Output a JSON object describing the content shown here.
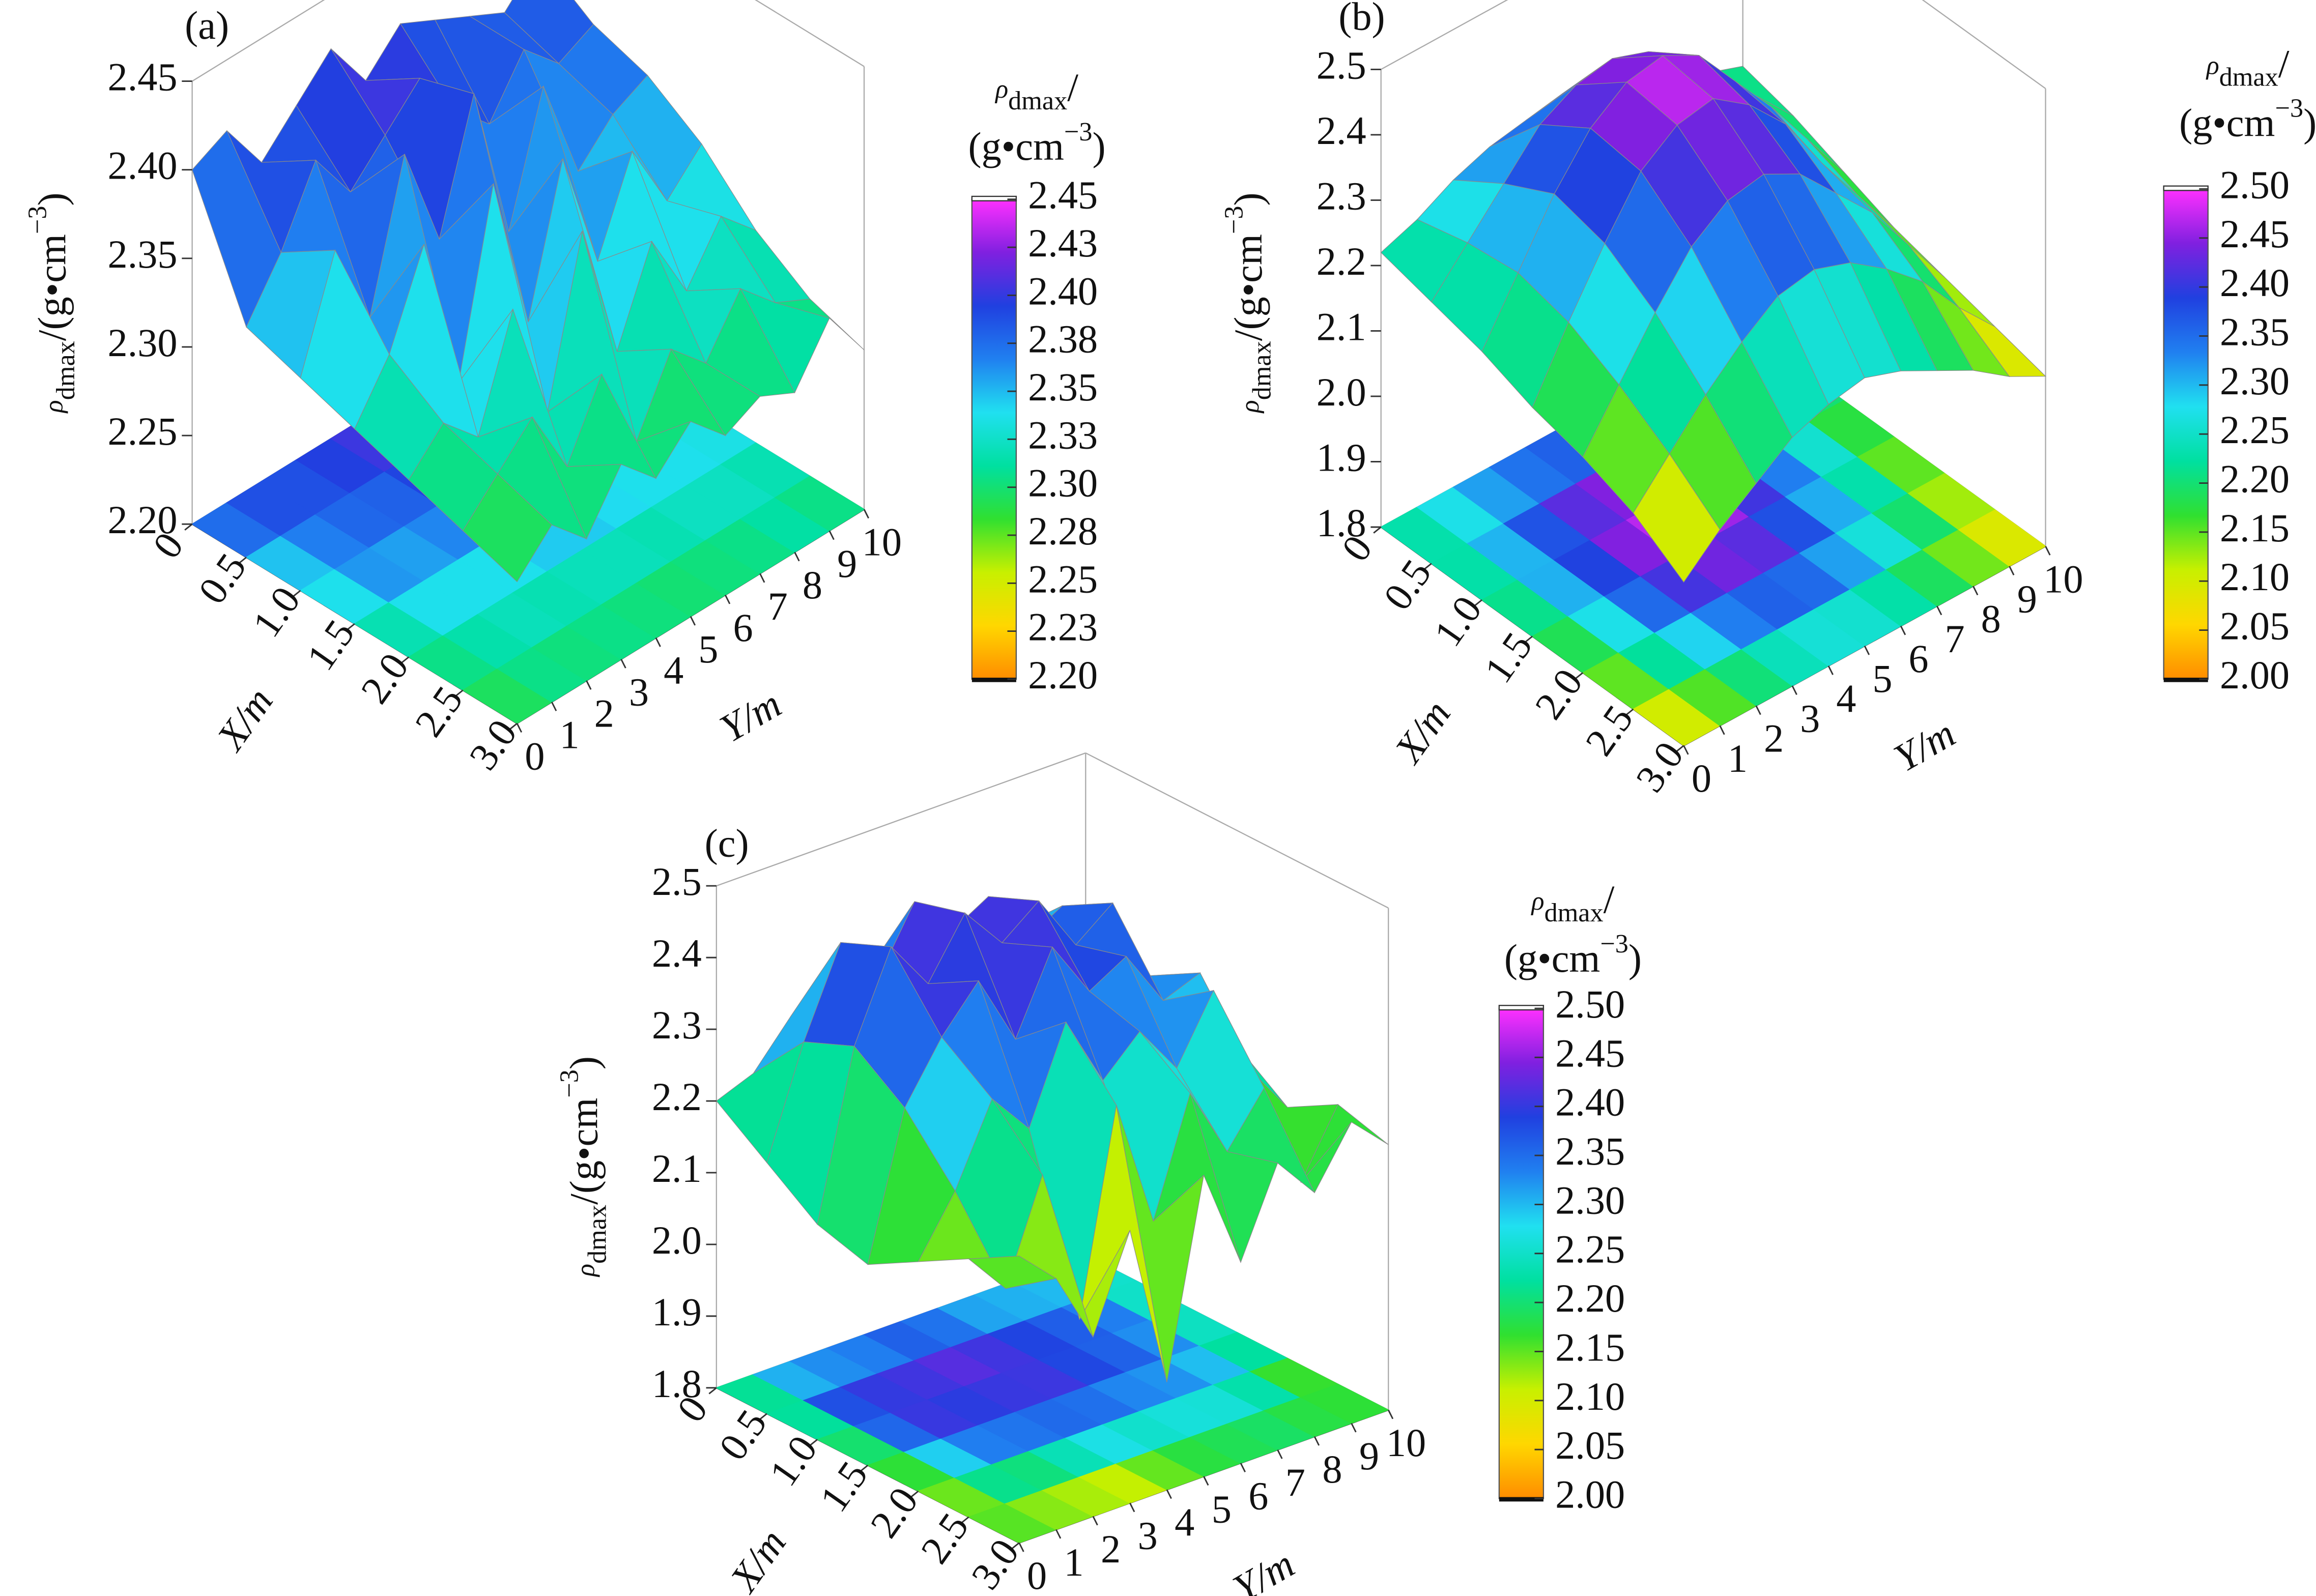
{
  "chart_data": [
    {
      "type": "surface",
      "title": "(a)",
      "x_label": "X/m",
      "y_label": "Y/m",
      "z_label": {
        "symbol": "ρ",
        "subscript": "dmax",
        "unit": "/(g•cm",
        "exponent": "−3",
        "close": ")"
      },
      "xlim": [
        0,
        3
      ],
      "ylim": [
        0,
        10
      ],
      "zlim": [
        2.2,
        2.45
      ],
      "xticks": [
        0,
        0.5,
        {
          "value": 1,
          "label": "1.0"
        },
        1.5,
        {
          "value": 2,
          "label": "2.0"
        },
        2.5,
        {
          "value": 3,
          "label": "3.0"
        }
      ],
      "yticks": [
        0,
        1,
        2,
        3,
        4,
        5,
        6,
        7,
        8,
        9,
        10
      ],
      "zticks": [
        {
          "value": 2.2,
          "label": "2.20"
        },
        2.25,
        {
          "value": 2.3,
          "label": "2.30"
        },
        2.35,
        {
          "value": 2.4,
          "label": "2.40"
        },
        2.45
      ],
      "z": [
        [
          2.4,
          2.41,
          2.38,
          2.4,
          2.42,
          2.39,
          2.41,
          2.4,
          2.39,
          2.38,
          2.4
        ],
        [
          2.33,
          2.36,
          2.4,
          2.37,
          2.39,
          2.41,
          2.38,
          2.36,
          2.39,
          2.37,
          2.38
        ],
        [
          2.32,
          2.38,
          2.33,
          2.41,
          2.35,
          2.42,
          2.33,
          2.4,
          2.34,
          2.36,
          2.37
        ],
        [
          2.31,
          2.34,
          2.39,
          2.3,
          2.4,
          2.31,
          2.39,
          2.32,
          2.37,
          2.33,
          2.35
        ],
        [
          2.3,
          2.32,
          2.3,
          2.36,
          2.29,
          2.38,
          2.3,
          2.35,
          2.31,
          2.34,
          2.32
        ],
        [
          2.29,
          2.31,
          2.33,
          2.29,
          2.33,
          2.28,
          2.32,
          2.3,
          2.33,
          2.31,
          2.3
        ],
        [
          2.28,
          2.3,
          2.28,
          2.31,
          2.29,
          2.31,
          2.29,
          2.3,
          2.29,
          2.32,
          2.29
        ]
      ],
      "colorbar": {
        "title": {
          "symbol": "ρ",
          "subscript": "dmax",
          "slash": "/",
          "unit": "(g•cm",
          "exponent": "−3",
          "close": ")"
        },
        "clim": [
          2.2,
          2.45
        ],
        "ticks": [
          {
            "value": 2.2,
            "label": "2.20"
          },
          {
            "value": 2.225,
            "label": "2.23"
          },
          2.25,
          {
            "value": 2.275,
            "label": "2.28"
          },
          {
            "value": 2.3,
            "label": "2.30"
          },
          {
            "value": 2.325,
            "label": "2.33"
          },
          2.35,
          {
            "value": 2.375,
            "label": "2.38"
          },
          {
            "value": 2.4,
            "label": "2.40"
          },
          {
            "value": 2.425,
            "label": "2.43"
          },
          2.45
        ]
      },
      "colormap": [
        "#ff8c00",
        "#ffd700",
        "#c8f000",
        "#30e030",
        "#00e0a0",
        "#20e0f0",
        "#2080f0",
        "#2040e0",
        "#8020e0",
        "#ff30ff"
      ]
    },
    {
      "type": "surface",
      "title": "(b)",
      "x_label": "X/m",
      "y_label": "Y/m",
      "z_label": {
        "symbol": "ρ",
        "subscript": "dmax",
        "unit": "/(g•cm",
        "exponent": "−3",
        "close": ")"
      },
      "xlim": [
        0,
        3
      ],
      "ylim": [
        0,
        10
      ],
      "zlim": [
        1.8,
        2.5
      ],
      "xticks": [
        0,
        0.5,
        {
          "value": 1,
          "label": "1.0"
        },
        1.5,
        {
          "value": 2,
          "label": "2.0"
        },
        2.5,
        {
          "value": 3,
          "label": "3.0"
        }
      ],
      "yticks": [
        0,
        1,
        2,
        3,
        4,
        5,
        6,
        7,
        8,
        9,
        10
      ],
      "zticks": [
        1.8,
        1.9,
        {
          "value": 2,
          "label": "2.0"
        },
        2.1,
        2.2,
        2.3,
        2.4,
        2.5
      ],
      "z": [
        [
          2.22,
          2.24,
          2.27,
          2.29,
          2.3,
          2.31,
          2.29,
          2.27,
          2.25,
          2.22,
          2.2
        ],
        [
          2.2,
          2.26,
          2.32,
          2.38,
          2.41,
          2.42,
          2.4,
          2.35,
          2.3,
          2.24,
          2.18
        ],
        [
          2.18,
          2.27,
          2.36,
          2.43,
          2.47,
          2.48,
          2.45,
          2.38,
          2.31,
          2.23,
          2.15
        ],
        [
          2.15,
          2.25,
          2.34,
          2.42,
          2.46,
          2.47,
          2.43,
          2.37,
          2.28,
          2.2,
          2.12
        ],
        [
          2.13,
          2.21,
          2.29,
          2.36,
          2.4,
          2.41,
          2.38,
          2.32,
          2.26,
          2.18,
          2.1
        ],
        [
          2.1,
          2.16,
          2.22,
          2.27,
          2.31,
          2.32,
          2.3,
          2.26,
          2.21,
          2.14,
          2.08
        ],
        [
          2.05,
          2.1,
          2.14,
          2.18,
          2.2,
          2.21,
          2.19,
          2.16,
          2.13,
          2.09,
          2.06
        ]
      ],
      "colorbar": {
        "title": {
          "symbol": "ρ",
          "subscript": "dmax",
          "slash": "/",
          "unit": "(g•cm",
          "exponent": "−3",
          "close": ")"
        },
        "clim": [
          2,
          2.5
        ],
        "ticks": [
          {
            "value": 2,
            "label": "2.00"
          },
          2.05,
          {
            "value": 2.1,
            "label": "2.10"
          },
          2.15,
          {
            "value": 2.2,
            "label": "2.20"
          },
          2.25,
          {
            "value": 2.3,
            "label": "2.30"
          },
          2.35,
          {
            "value": 2.4,
            "label": "2.40"
          },
          2.45,
          {
            "value": 2.5,
            "label": "2.50"
          }
        ]
      },
      "colormap": [
        "#ff8c00",
        "#ffd700",
        "#c8f000",
        "#30e030",
        "#00e0a0",
        "#20e0f0",
        "#2080f0",
        "#2040e0",
        "#8020e0",
        "#ff30ff"
      ]
    },
    {
      "type": "surface",
      "title": "(c)",
      "x_label": "X/m",
      "y_label": "Y/m",
      "z_label": {
        "symbol": "ρ",
        "subscript": "dmax",
        "unit": "/(g•cm",
        "exponent": "−3",
        "close": ")"
      },
      "xlim": [
        0,
        3
      ],
      "ylim": [
        0,
        10
      ],
      "zlim": [
        1.8,
        2.5
      ],
      "xticks": [
        0,
        0.5,
        {
          "value": 1,
          "label": "1.0"
        },
        1.5,
        {
          "value": 2,
          "label": "2.0"
        },
        2.5,
        {
          "value": 3,
          "label": "3.0"
        }
      ],
      "yticks": [
        0,
        1,
        2,
        3,
        4,
        5,
        6,
        7,
        8,
        9,
        10
      ],
      "zticks": [
        1.8,
        1.9,
        {
          "value": 2,
          "label": "2.0"
        },
        2.1,
        2.2,
        2.3,
        2.4,
        2.5
      ],
      "z": [
        [
          2.2,
          2.22,
          2.28,
          2.25,
          2.3,
          2.32,
          2.27,
          2.24,
          2.29,
          2.25,
          2.22
        ],
        [
          2.15,
          2.3,
          2.42,
          2.35,
          2.44,
          2.38,
          2.41,
          2.33,
          2.36,
          2.3,
          2.24
        ],
        [
          2.1,
          2.33,
          2.45,
          2.38,
          2.46,
          2.4,
          2.44,
          2.36,
          2.4,
          2.28,
          2.18
        ],
        [
          2.08,
          2.28,
          2.36,
          2.42,
          2.32,
          2.43,
          2.35,
          2.38,
          2.3,
          2.32,
          2.2
        ],
        [
          2.12,
          2.2,
          2.31,
          2.25,
          2.38,
          2.28,
          2.33,
          2.26,
          2.35,
          2.22,
          2.15
        ],
        [
          2.16,
          2.1,
          2.24,
          2.02,
          2.3,
          2.12,
          2.28,
          2.18,
          2.25,
          2.1,
          2.19
        ],
        [
          2.2,
          2.15,
          2.05,
          2.18,
          1.95,
          2.22,
          2.08,
          2.2,
          2.14,
          2.22,
          2.17
        ]
      ],
      "colorbar": {
        "title": {
          "symbol": "ρ",
          "subscript": "dmax",
          "slash": "/",
          "unit": "(g•cm",
          "exponent": "−3",
          "close": ")"
        },
        "clim": [
          2,
          2.5
        ],
        "ticks": [
          {
            "value": 2,
            "label": "2.00"
          },
          2.05,
          {
            "value": 2.1,
            "label": "2.10"
          },
          2.15,
          {
            "value": 2.2,
            "label": "2.20"
          },
          2.25,
          {
            "value": 2.3,
            "label": "2.30"
          },
          2.35,
          {
            "value": 2.4,
            "label": "2.40"
          },
          2.45,
          {
            "value": 2.5,
            "label": "2.50"
          }
        ]
      },
      "colormap": [
        "#ff8c00",
        "#ffd700",
        "#c8f000",
        "#30e030",
        "#00e0a0",
        "#20e0f0",
        "#2080f0",
        "#2040e0",
        "#8020e0",
        "#ff30ff"
      ]
    }
  ]
}
